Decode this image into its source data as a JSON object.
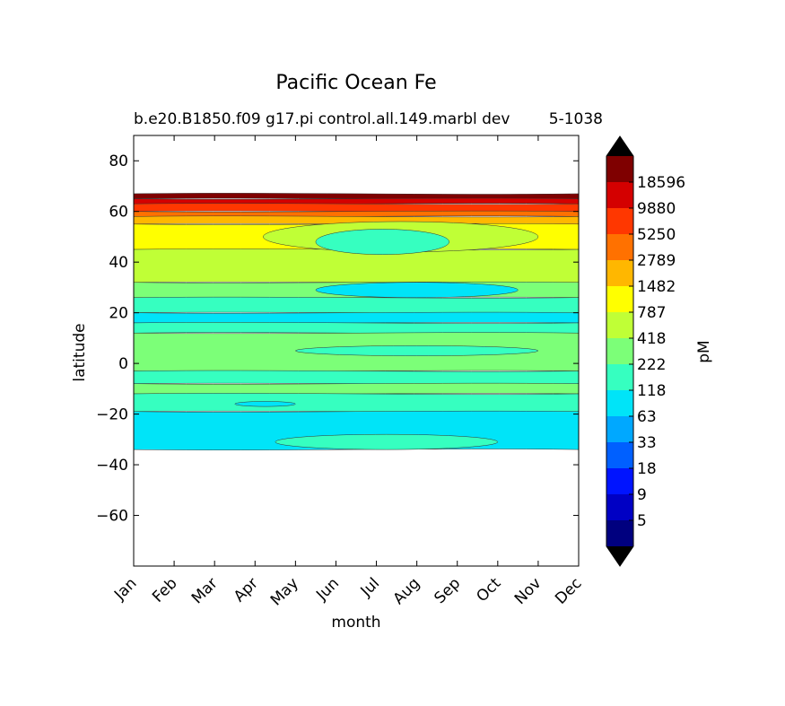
{
  "chart_data": {
    "type": "contour",
    "title": "Pacific Ocean Fe",
    "subtitle": "b.e20.B1850.f09 g17.pi control.all.149.marbl dev",
    "subtitle_overlap": "5-1038",
    "xlabel": "month",
    "ylabel": "latitude",
    "x_categories": [
      "Jan",
      "Feb",
      "Mar",
      "Apr",
      "May",
      "Jun",
      "Jul",
      "Aug",
      "Sep",
      "Oct",
      "Nov",
      "Dec"
    ],
    "ylim": [
      -80,
      90
    ],
    "y_ticks": [
      80,
      60,
      40,
      20,
      0,
      -20,
      -40,
      -60
    ],
    "y_tick_labels": [
      "80",
      "60",
      "40",
      "20",
      "0",
      "−20",
      "−40",
      "−60"
    ],
    "data_extent_lat": [
      -34,
      67
    ],
    "colorbar": {
      "label": "pM",
      "tick_labels": [
        "18596",
        "9880",
        "5250",
        "2789",
        "1482",
        "787",
        "418",
        "222",
        "118",
        "63",
        "33",
        "18",
        "9",
        "5"
      ],
      "colors": [
        "#7f0000",
        "#d40000",
        "#ff3700",
        "#ff7100",
        "#ffb700",
        "#ffff00",
        "#c0ff36",
        "#7cff78",
        "#36ffc0",
        "#00e4f8",
        "#00a8ff",
        "#0060ff",
        "#0014ff",
        "#0000c4",
        "#00007f"
      ],
      "extend_colors": {
        "top": "#000000",
        "bottom": "#000000"
      }
    },
    "bands": [
      {
        "lat_top": 67,
        "lat_bot": 65,
        "level": 0
      },
      {
        "lat_top": 65,
        "lat_bot": 63,
        "level": 1
      },
      {
        "lat_top": 63,
        "lat_bot": 60,
        "level": 2
      },
      {
        "lat_top": 60,
        "lat_bot": 58,
        "level": 3
      },
      {
        "lat_top": 58,
        "lat_bot": 55,
        "level": 4
      },
      {
        "lat_top": 55,
        "lat_bot": 45,
        "level": 5
      },
      {
        "lat_top": 45,
        "lat_bot": 32,
        "level": 6
      },
      {
        "lat_top": 32,
        "lat_bot": 26,
        "level": 7
      },
      {
        "lat_top": 26,
        "lat_bot": 20,
        "level": 8
      },
      {
        "lat_top": 20,
        "lat_bot": 16,
        "level": 9
      },
      {
        "lat_top": 16,
        "lat_bot": 12,
        "level": 8
      },
      {
        "lat_top": 12,
        "lat_bot": -3,
        "level": 7
      },
      {
        "lat_top": -3,
        "lat_bot": -8,
        "level": 8
      },
      {
        "lat_top": -8,
        "lat_bot": -12,
        "level": 7
      },
      {
        "lat_top": -12,
        "lat_bot": -19,
        "level": 8
      },
      {
        "lat_top": -19,
        "lat_bot": -34,
        "level": 9
      }
    ],
    "blobs": [
      {
        "lat": 50,
        "month_start": 3.2,
        "month_end": 10,
        "lat_half": 6,
        "level": 6
      },
      {
        "lat": 48,
        "month_start": 4.5,
        "month_end": 7.8,
        "lat_half": 5,
        "level": 8
      },
      {
        "lat": 29,
        "month_start": 4.5,
        "month_end": 9.5,
        "lat_half": 3,
        "level": 9
      },
      {
        "lat": 5,
        "month_start": 4,
        "month_end": 10,
        "lat_half": 2,
        "level": 8
      },
      {
        "lat": -31,
        "month_start": 3.5,
        "month_end": 9,
        "lat_half": 3,
        "level": 8
      },
      {
        "lat": -16,
        "month_start": 2.5,
        "month_end": 4,
        "lat_half": 1,
        "level": 9
      }
    ]
  }
}
